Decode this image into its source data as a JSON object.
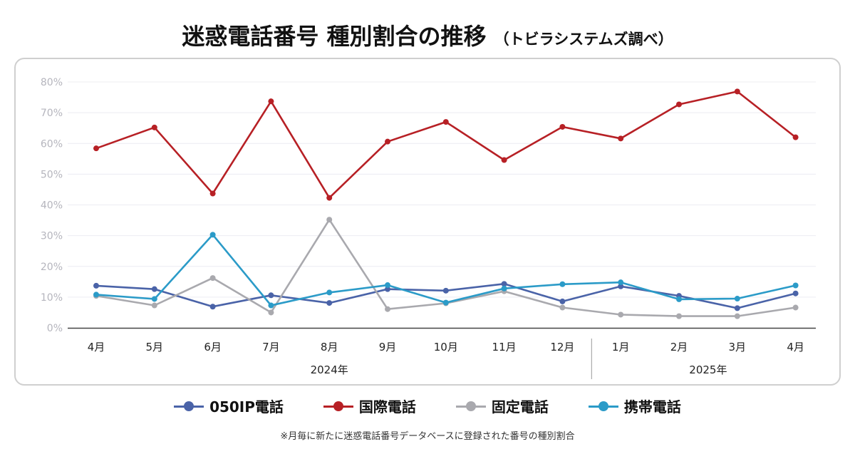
{
  "title": "迷惑電話番号 種別割合の推移",
  "subtitle": "（トビラシステムズ調べ）",
  "footnote": "※月毎に新たに迷惑電話番号データベースに登録された番号の種別割合",
  "chart_data": {
    "type": "line",
    "categories": [
      "4月",
      "5月",
      "6月",
      "7月",
      "8月",
      "9月",
      "10月",
      "11月",
      "12月",
      "1月",
      "2月",
      "3月",
      "4月"
    ],
    "year_groups": [
      {
        "label": "2024年",
        "from": 0,
        "to": 8
      },
      {
        "label": "2025年",
        "from": 9,
        "to": 12
      }
    ],
    "ylim": [
      0,
      80
    ],
    "yticks": [
      0,
      10,
      20,
      30,
      40,
      50,
      60,
      70,
      80
    ],
    "ytick_labels": [
      "0%",
      "10%",
      "20%",
      "30%",
      "40%",
      "50%",
      "60%",
      "70%",
      "80%"
    ],
    "grid": true,
    "legend_position": "bottom",
    "series": [
      {
        "name": "050IP電話",
        "color": "#4a63a8",
        "values": [
          13.7,
          12.6,
          6.9,
          10.6,
          8.1,
          12.6,
          12.1,
          14.3,
          8.6,
          13.5,
          10.4,
          6.4,
          11.2
        ]
      },
      {
        "name": "国際電話",
        "color": "#b72025",
        "values": [
          58.4,
          65.2,
          43.7,
          73.7,
          42.3,
          60.6,
          67.0,
          54.6,
          65.4,
          61.6,
          72.7,
          76.9,
          62.0
        ]
      },
      {
        "name": "固定電話",
        "color": "#a9a9ae",
        "values": [
          10.4,
          7.3,
          16.2,
          5.0,
          35.2,
          6.1,
          8.0,
          11.9,
          6.6,
          4.3,
          3.8,
          3.8,
          6.6
        ]
      },
      {
        "name": "携帯電話",
        "color": "#2b9bc8",
        "values": [
          10.8,
          9.4,
          30.3,
          7.3,
          11.5,
          13.9,
          8.2,
          12.8,
          14.2,
          14.8,
          9.3,
          9.5,
          13.8
        ]
      }
    ]
  }
}
